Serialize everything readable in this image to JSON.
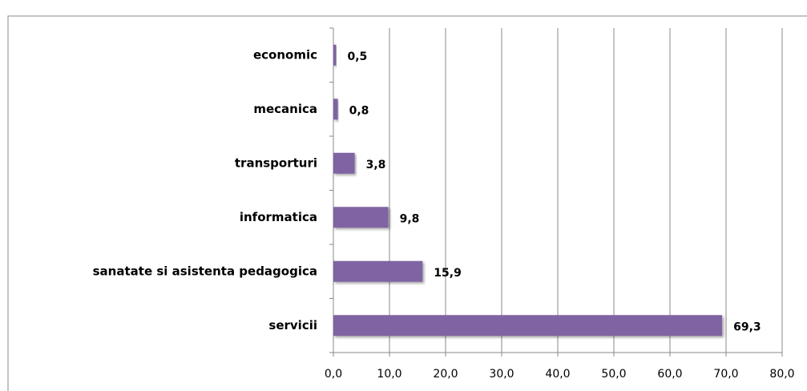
{
  "chart_data": {
    "type": "bar",
    "orientation": "horizontal",
    "categories": [
      "economic",
      "mecanica",
      "transporturi",
      "informatica",
      "sanatate si asistenta pedagogica",
      "servicii"
    ],
    "values": [
      0.5,
      0.8,
      3.8,
      9.8,
      15.9,
      69.3
    ],
    "value_labels": [
      "0,5",
      "0,8",
      "3,8",
      "9,8",
      "15,9",
      "69,3"
    ],
    "color": "#8064a2",
    "xlim": [
      0,
      80
    ],
    "xticks": [
      {
        "value": 0,
        "label": "0,0"
      },
      {
        "value": 10,
        "label": "10,0"
      },
      {
        "value": 20,
        "label": "20,0"
      },
      {
        "value": 30,
        "label": "30,0"
      },
      {
        "value": 40,
        "label": "40,0"
      },
      {
        "value": 50,
        "label": "50,0"
      },
      {
        "value": 60,
        "label": "60,0"
      },
      {
        "value": 70,
        "label": "70,0"
      },
      {
        "value": 80,
        "label": "80,0"
      }
    ],
    "grid": true
  }
}
